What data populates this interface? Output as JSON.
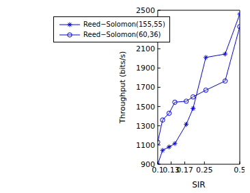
{
  "chart_data": {
    "type": "line",
    "x_label": "SIR",
    "y_label": "Throughput (bits/s)",
    "log": "x",
    "x": [
      0.1,
      0.11,
      0.125,
      0.14,
      0.175,
      0.2,
      0.257,
      0.375,
      0.5
    ],
    "xlim": [
      0.1,
      0.5
    ],
    "xticks": [
      0.1,
      0.13,
      0.17,
      0.25,
      0.5
    ],
    "ylim": [
      900,
      2500
    ],
    "yticks": [
      900,
      1100,
      1300,
      1500,
      1700,
      1900,
      2100,
      2300,
      2500
    ],
    "grid": false,
    "legend": "upper left",
    "series": [
      {
        "name": "Reed−Solomon(155,55)",
        "color": "#0000ff",
        "marker": "star",
        "line_style": "solid",
        "values": [
          900,
          1045,
          1080,
          1115,
          1315,
          1480,
          2010,
          2045,
          2460
        ]
      },
      {
        "name": "Reed−Solomon(60,36)",
        "color": "#0000ff",
        "marker": "circle",
        "line_style": "solid",
        "values": [
          1130,
          1360,
          1430,
          1545,
          1555,
          1600,
          1670,
          1765,
          2330
        ]
      }
    ]
  }
}
